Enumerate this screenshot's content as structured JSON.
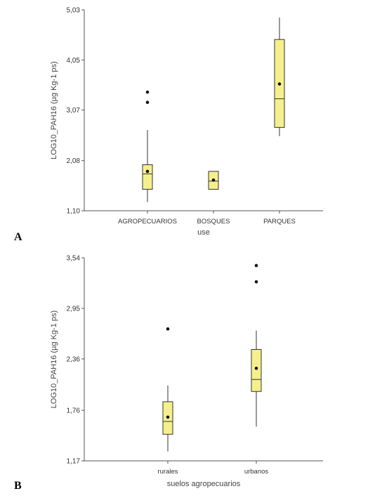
{
  "chart_data": [
    {
      "panel_label": "A",
      "type": "boxplot",
      "ylabel": "LOG10_PAH16 (µg Kg-1 ps)",
      "xlabel": "use",
      "ylim": [
        1.1,
        5.03
      ],
      "yticks": [
        "1,10",
        "2,08",
        "3,07",
        "4,05",
        "5,03"
      ],
      "ytick_values": [
        1.1,
        2.08,
        3.07,
        4.05,
        5.03
      ],
      "box_color": "#f5f08c",
      "groups": [
        {
          "name": "AGROPECUARIOS",
          "whisker_low": 1.27,
          "q1": 1.52,
          "median": 1.82,
          "q3": 2.0,
          "whisker_high": 2.68,
          "mean": 1.87,
          "outliers": [
            3.42,
            3.22
          ]
        },
        {
          "name": "BOSQUES",
          "whisker_low": 1.52,
          "q1": 1.52,
          "median": 1.68,
          "q3": 1.87,
          "whisker_high": 1.87,
          "mean": 1.7,
          "outliers": []
        },
        {
          "name": "PARQUES",
          "whisker_low": 2.56,
          "q1": 2.73,
          "median": 3.29,
          "q3": 4.45,
          "whisker_high": 4.88,
          "mean": 3.58,
          "outliers": []
        }
      ]
    },
    {
      "panel_label": "B",
      "type": "boxplot",
      "ylabel": "LOG10_PAH16 (µg Kg-1 ps)",
      "xlabel": "suelos agropecuarios",
      "ylim": [
        1.17,
        3.54
      ],
      "yticks": [
        "1,17",
        "1,76",
        "2,36",
        "2,95",
        "3,54"
      ],
      "ytick_values": [
        1.17,
        1.76,
        2.36,
        2.95,
        3.54
      ],
      "box_color": "#f5f08c",
      "groups": [
        {
          "name": "rurales",
          "whisker_low": 1.28,
          "q1": 1.48,
          "median": 1.63,
          "q3": 1.86,
          "whisker_high": 2.05,
          "mean": 1.68,
          "outliers": [
            2.71
          ]
        },
        {
          "name": "urbanos",
          "whisker_low": 1.57,
          "q1": 1.98,
          "median": 2.12,
          "q3": 2.47,
          "whisker_high": 2.69,
          "mean": 2.25,
          "outliers": [
            3.45,
            3.26
          ]
        }
      ]
    }
  ]
}
